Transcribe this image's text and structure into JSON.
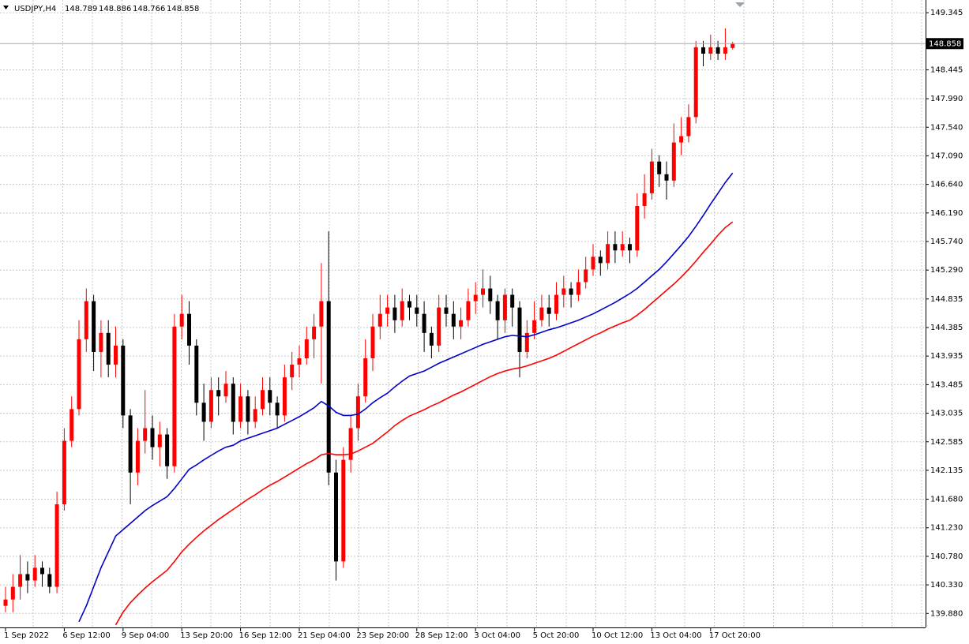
{
  "chart_data": {
    "type": "candlestick",
    "symbol": "USDJPY,H4",
    "categories": [
      "1 Sep 2022",
      null,
      null,
      null,
      null,
      null,
      null,
      null,
      "6 Sep 12:00",
      null,
      null,
      null,
      null,
      null,
      null,
      null,
      "9 Sep 04:00",
      null,
      null,
      null,
      null,
      null,
      null,
      null,
      "13 Sep 20:00",
      null,
      null,
      null,
      null,
      null,
      null,
      null,
      "16 Sep 12:00",
      null,
      null,
      null,
      null,
      null,
      null,
      null,
      "21 Sep 04:00",
      null,
      null,
      null,
      null,
      null,
      null,
      null,
      "23 Sep 20:00",
      null,
      null,
      null,
      null,
      null,
      null,
      null,
      "28 Sep 12:00",
      null,
      null,
      null,
      null,
      null,
      null,
      null,
      "3 Oct 04:00",
      null,
      null,
      null,
      null,
      null,
      null,
      null,
      "5 Oct 20:00",
      null,
      null,
      null,
      null,
      null,
      null,
      null,
      "10 Oct 12:00",
      null,
      null,
      null,
      null,
      null,
      null,
      null,
      "13 Oct 04:00",
      null,
      null,
      null,
      null,
      null,
      null,
      null,
      "17 Oct 20:00",
      null,
      null,
      null
    ],
    "open": [
      140.0,
      140.1,
      140.3,
      140.5,
      140.4,
      140.6,
      140.5,
      140.3,
      141.6,
      142.6,
      143.1,
      144.2,
      144.8,
      144.0,
      144.3,
      143.8,
      144.1,
      143.0,
      142.1,
      142.6,
      142.8,
      142.5,
      142.7,
      142.2,
      144.4,
      144.6,
      144.1,
      143.2,
      142.9,
      143.4,
      143.3,
      143.5,
      142.9,
      143.3,
      142.9,
      143.1,
      143.4,
      143.2,
      143.0,
      143.6,
      143.8,
      143.9,
      144.2,
      144.4,
      144.8,
      142.1,
      140.7,
      142.3,
      142.8,
      143.3,
      143.9,
      144.4,
      144.6,
      144.7,
      144.5,
      144.8,
      144.7,
      144.6,
      144.3,
      144.1,
      144.7,
      144.6,
      144.4,
      144.5,
      144.8,
      144.9,
      145.0,
      144.8,
      144.5,
      144.9,
      144.7,
      144.0,
      144.3,
      144.5,
      144.7,
      144.6,
      144.9,
      145.0,
      144.9,
      145.1,
      145.3,
      145.5,
      145.4,
      145.7,
      145.6,
      145.7,
      145.6,
      146.3,
      146.5,
      147.0,
      146.8,
      146.7,
      147.3,
      147.4,
      147.7,
      148.8,
      148.7,
      148.8,
      148.7,
      148.789
    ],
    "high": [
      140.3,
      140.5,
      140.8,
      140.7,
      140.8,
      140.7,
      140.6,
      141.8,
      142.8,
      143.3,
      144.5,
      145.0,
      144.9,
      144.5,
      144.5,
      144.4,
      144.2,
      143.1,
      142.8,
      143.4,
      143.0,
      142.9,
      142.8,
      144.6,
      144.9,
      144.8,
      144.2,
      143.5,
      143.6,
      143.6,
      143.7,
      143.6,
      143.5,
      143.4,
      143.3,
      143.6,
      143.6,
      143.3,
      143.8,
      144.0,
      144.1,
      144.4,
      144.6,
      145.4,
      145.9,
      142.3,
      142.5,
      143.0,
      143.5,
      144.2,
      144.6,
      144.9,
      144.9,
      144.9,
      145.0,
      144.9,
      144.9,
      144.8,
      144.4,
      144.9,
      144.9,
      144.8,
      144.7,
      145.0,
      145.1,
      145.3,
      145.2,
      144.9,
      145.0,
      145.0,
      144.8,
      144.5,
      144.8,
      144.9,
      144.9,
      145.1,
      145.2,
      145.1,
      145.3,
      145.5,
      145.7,
      145.6,
      145.9,
      145.9,
      145.9,
      145.8,
      146.5,
      146.8,
      147.2,
      147.1,
      147.0,
      147.6,
      147.7,
      147.9,
      148.9,
      148.9,
      149.0,
      148.9,
      149.1,
      148.886
    ],
    "low": [
      139.9,
      139.9,
      140.1,
      140.2,
      140.3,
      140.3,
      140.2,
      140.2,
      141.5,
      142.5,
      143.0,
      144.0,
      143.7,
      143.6,
      143.6,
      143.6,
      142.8,
      141.6,
      141.9,
      142.4,
      142.3,
      142.2,
      142.0,
      142.1,
      144.2,
      143.8,
      143.0,
      142.6,
      142.8,
      143.0,
      143.2,
      142.7,
      142.8,
      142.7,
      142.8,
      143.0,
      143.0,
      142.8,
      142.9,
      143.4,
      143.6,
      143.8,
      143.9,
      143.5,
      141.9,
      140.4,
      140.6,
      142.1,
      142.6,
      143.2,
      143.7,
      144.2,
      144.4,
      144.3,
      144.4,
      144.5,
      144.4,
      144.0,
      143.9,
      144.0,
      144.4,
      144.2,
      144.2,
      144.4,
      144.6,
      144.7,
      144.6,
      144.2,
      144.3,
      144.4,
      143.6,
      143.9,
      144.2,
      144.4,
      144.4,
      144.5,
      144.7,
      144.7,
      144.8,
      145.0,
      145.2,
      145.2,
      145.3,
      145.4,
      145.5,
      145.4,
      145.5,
      146.1,
      146.4,
      146.6,
      146.4,
      146.6,
      147.1,
      147.3,
      147.6,
      148.5,
      148.6,
      148.6,
      148.6,
      148.766
    ],
    "close": [
      140.1,
      140.3,
      140.5,
      140.4,
      140.6,
      140.5,
      140.3,
      141.6,
      142.6,
      143.1,
      144.2,
      144.8,
      144.0,
      144.3,
      143.8,
      144.1,
      143.0,
      142.1,
      142.6,
      142.8,
      142.5,
      142.7,
      142.2,
      144.4,
      144.6,
      144.1,
      143.2,
      142.9,
      143.4,
      143.3,
      143.5,
      142.9,
      143.3,
      142.9,
      143.1,
      143.4,
      143.2,
      143.0,
      143.6,
      143.8,
      143.9,
      144.2,
      144.4,
      144.8,
      142.1,
      140.7,
      142.3,
      142.8,
      143.3,
      143.9,
      144.4,
      144.6,
      144.7,
      144.5,
      144.8,
      144.7,
      144.6,
      144.3,
      144.1,
      144.7,
      144.6,
      144.4,
      144.5,
      144.8,
      144.9,
      145.0,
      144.8,
      144.5,
      144.9,
      144.7,
      144.0,
      144.3,
      144.5,
      144.7,
      144.6,
      144.9,
      145.0,
      144.9,
      145.1,
      145.3,
      145.5,
      145.4,
      145.7,
      145.6,
      145.7,
      145.6,
      146.3,
      146.5,
      147.0,
      146.8,
      146.7,
      147.3,
      147.4,
      147.7,
      148.8,
      148.7,
      148.8,
      148.7,
      148.8,
      148.858
    ],
    "up_color": "#ff0000",
    "down_color": "#000000",
    "lines": [
      {
        "color": "#0000c8",
        "values": [
          null,
          null,
          null,
          null,
          null,
          null,
          null,
          null,
          null,
          null,
          139.75,
          140.0,
          140.3,
          140.6,
          140.85,
          141.1,
          141.2,
          141.3,
          141.4,
          141.5,
          141.58,
          141.65,
          141.72,
          141.85,
          142.0,
          142.15,
          142.22,
          142.3,
          142.37,
          142.44,
          142.5,
          142.53,
          142.6,
          142.64,
          142.68,
          142.72,
          142.76,
          142.8,
          142.86,
          142.92,
          142.98,
          143.05,
          143.12,
          143.22,
          143.15,
          143.05,
          143.0,
          143.0,
          143.02,
          143.1,
          143.2,
          143.28,
          143.35,
          143.45,
          143.54,
          143.62,
          143.66,
          143.7,
          143.76,
          143.82,
          143.87,
          143.92,
          143.97,
          144.02,
          144.07,
          144.12,
          144.16,
          144.2,
          144.24,
          144.26,
          144.25,
          144.24,
          144.27,
          144.31,
          144.35,
          144.38,
          144.42,
          144.46,
          144.5,
          144.55,
          144.6,
          144.66,
          144.72,
          144.78,
          144.85,
          144.92,
          145.0,
          145.1,
          145.2,
          145.3,
          145.42,
          145.55,
          145.68,
          145.82,
          145.98,
          146.15,
          146.33,
          146.5,
          146.67,
          146.82
        ]
      },
      {
        "color": "#ff0000",
        "values": [
          null,
          null,
          null,
          null,
          null,
          null,
          null,
          null,
          null,
          null,
          null,
          null,
          null,
          null,
          null,
          139.7,
          139.9,
          140.05,
          140.17,
          140.28,
          140.38,
          140.47,
          140.56,
          140.7,
          140.85,
          140.97,
          141.08,
          141.18,
          141.27,
          141.36,
          141.44,
          141.52,
          141.6,
          141.68,
          141.75,
          141.83,
          141.9,
          141.96,
          142.03,
          142.1,
          142.17,
          142.24,
          142.3,
          142.38,
          142.4,
          142.38,
          142.38,
          142.39,
          142.44,
          142.5,
          142.56,
          142.65,
          142.74,
          142.84,
          142.92,
          142.99,
          143.04,
          143.09,
          143.15,
          143.2,
          143.26,
          143.32,
          143.37,
          143.43,
          143.49,
          143.55,
          143.61,
          143.66,
          143.7,
          143.73,
          143.75,
          143.78,
          143.82,
          143.86,
          143.9,
          143.95,
          144.01,
          144.07,
          144.13,
          144.19,
          144.25,
          144.3,
          144.36,
          144.41,
          144.46,
          144.5,
          144.58,
          144.67,
          144.77,
          144.87,
          144.97,
          145.07,
          145.18,
          145.3,
          145.43,
          145.57,
          145.7,
          145.84,
          145.96,
          146.05
        ]
      }
    ],
    "ylim": [
      139.66,
      149.545
    ],
    "yticks": [
      149.345,
      148.445,
      {
        "value": 147.99,
        "label": "147.990"
      },
      {
        "value": 147.54,
        "label": "147.540"
      },
      {
        "value": 147.09,
        "label": "147.090"
      },
      {
        "value": 146.64,
        "label": "146.640"
      },
      {
        "value": 146.19,
        "label": "146.190"
      },
      {
        "value": 145.74,
        "label": "145.740"
      },
      {
        "value": 145.29,
        "label": "145.290"
      },
      144.835,
      144.385,
      143.935,
      143.485,
      143.035,
      142.585,
      142.135,
      {
        "value": 141.68,
        "label": "141.680"
      },
      {
        "value": 141.23,
        "label": "141.230"
      },
      {
        "value": 140.78,
        "label": "140.780"
      },
      {
        "value": 140.33,
        "label": "140.330"
      },
      {
        "value": 139.88,
        "label": "139.880"
      }
    ],
    "grid": true
  }
}
